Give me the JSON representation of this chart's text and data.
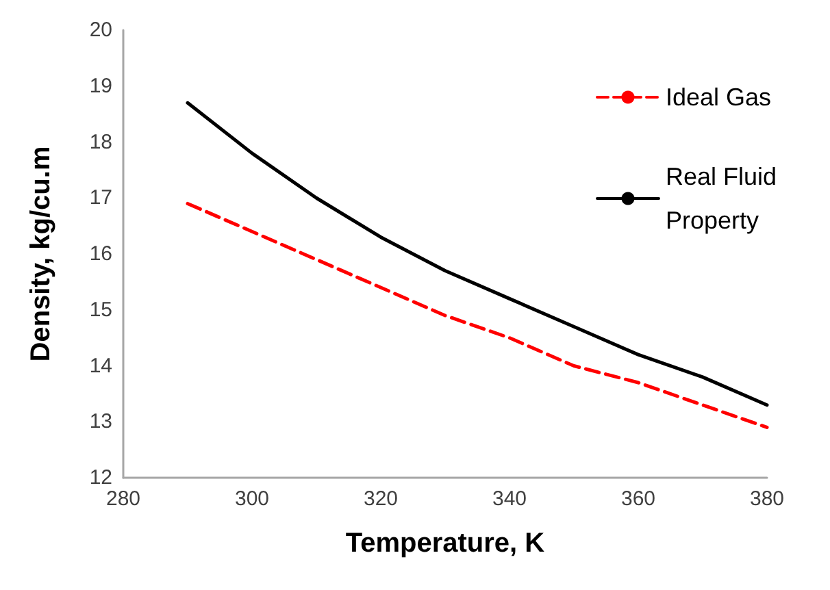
{
  "chart_data": {
    "type": "line",
    "xlabel": "Temperature, K",
    "ylabel": "Density, kg/cu.m",
    "x": [
      290,
      300,
      310,
      320,
      330,
      340,
      350,
      360,
      370,
      380
    ],
    "series": [
      {
        "name": "Ideal Gas",
        "color": "#ff0000",
        "line_style": "dashed",
        "values": [
          16.9,
          16.4,
          15.9,
          15.4,
          14.9,
          14.5,
          14.0,
          13.7,
          13.3,
          12.9
        ]
      },
      {
        "name": "Real Fluid Property",
        "color": "#000000",
        "line_style": "solid",
        "values": [
          18.7,
          17.8,
          17.0,
          16.3,
          15.7,
          15.2,
          14.7,
          14.2,
          13.8,
          13.3
        ]
      }
    ],
    "xlim": [
      280,
      380
    ],
    "xticks": [
      280,
      300,
      320,
      340,
      360,
      380
    ],
    "ylim": [
      12,
      20
    ],
    "yticks": [
      12,
      13,
      14,
      15,
      16,
      17,
      18,
      19,
      20
    ],
    "grid": false,
    "legend": "top right",
    "marker": "none"
  }
}
